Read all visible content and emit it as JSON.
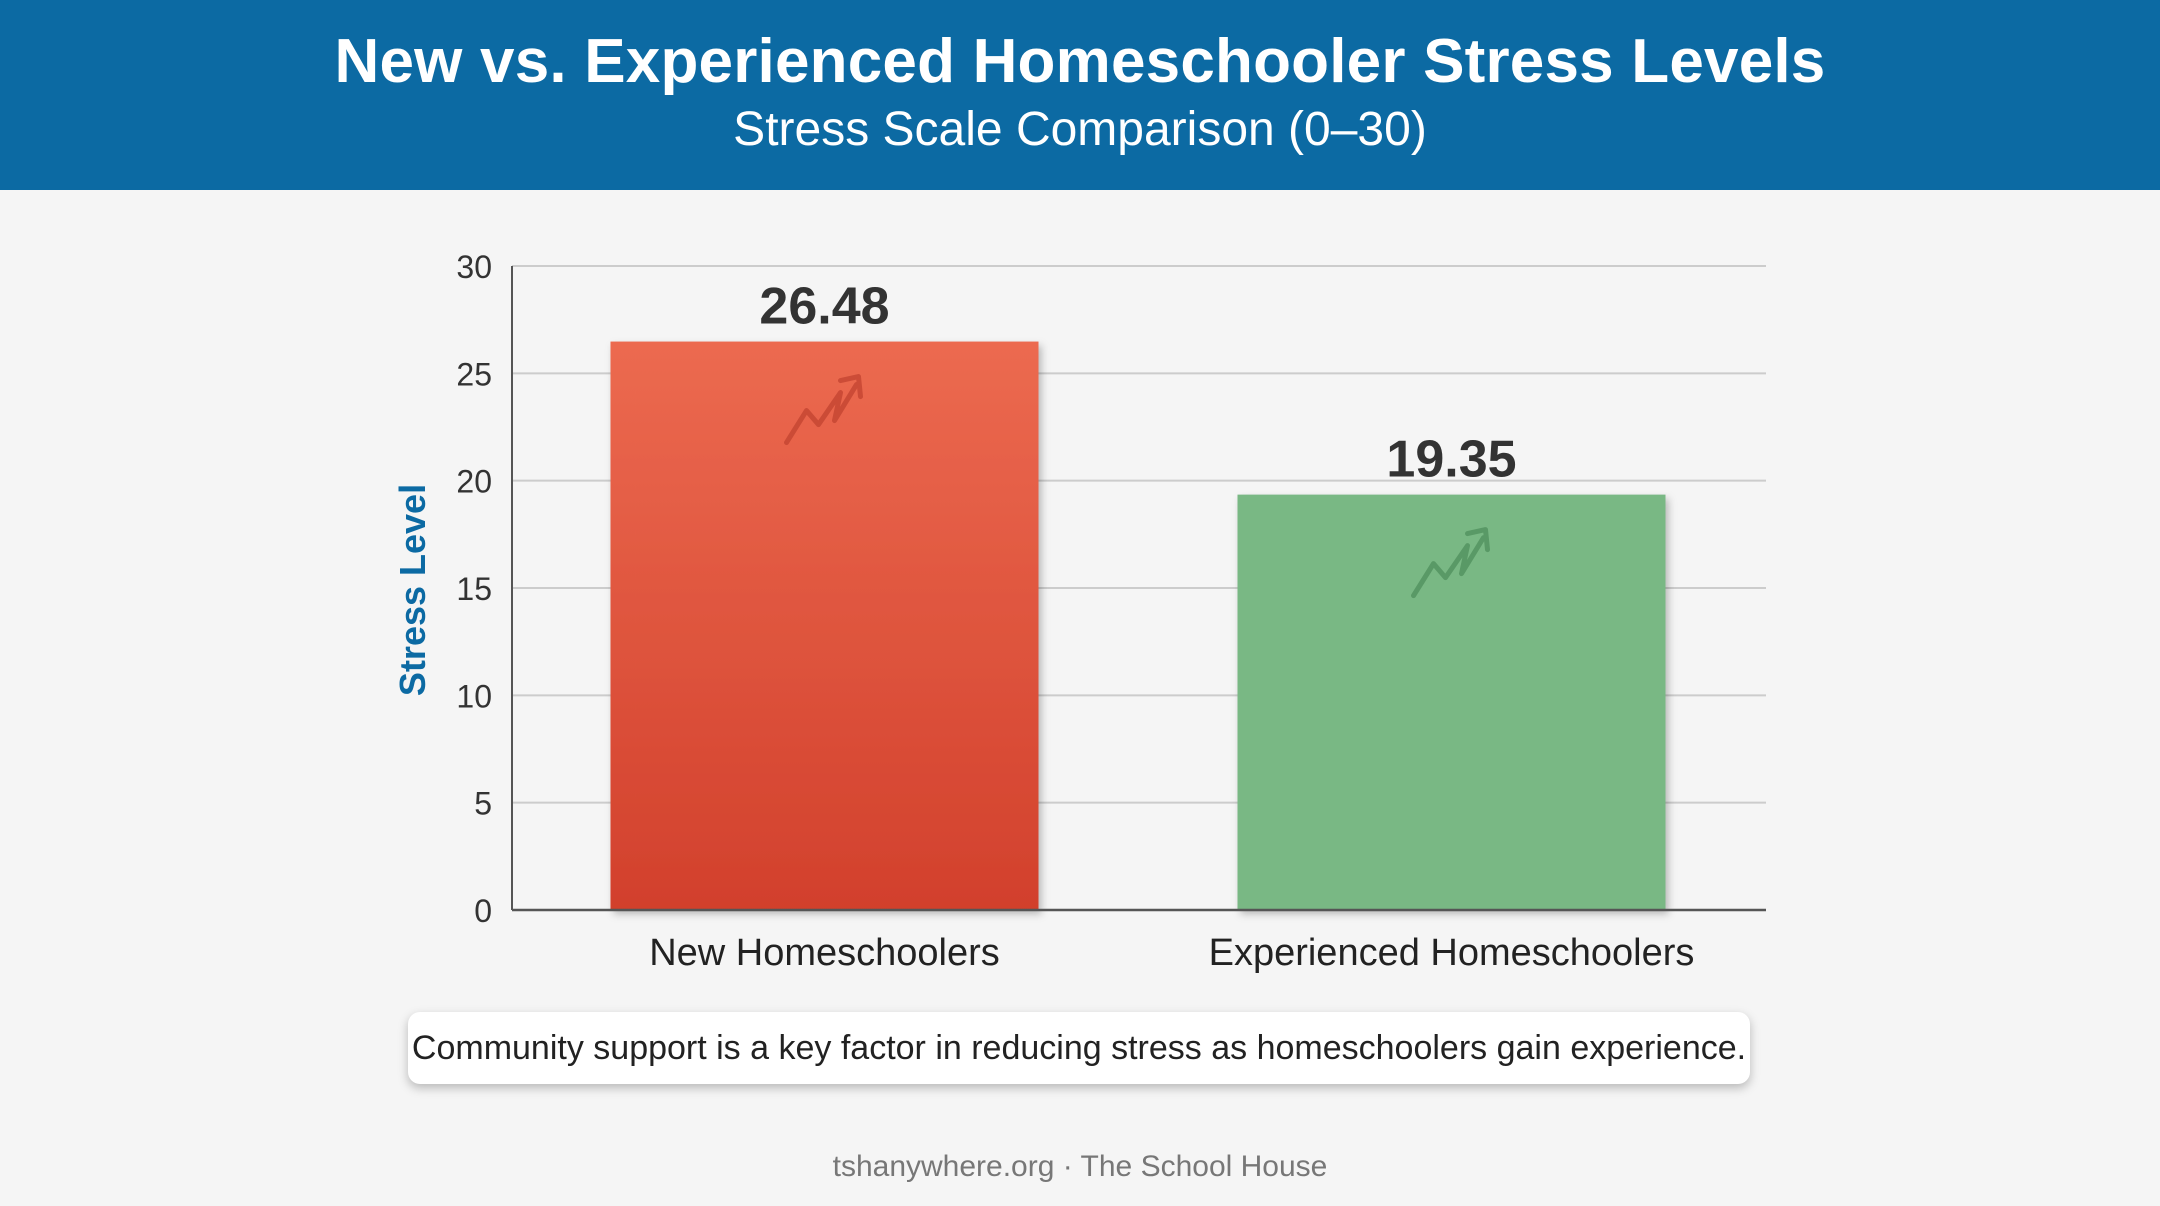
{
  "header": {
    "title": "New vs. Experienced Homeschooler Stress Levels",
    "subtitle": "Stress Scale Comparison (0–30)"
  },
  "chart_data": {
    "type": "bar",
    "title": "New vs. Experienced Homeschooler Stress Levels",
    "subtitle": "Stress Scale Comparison (0–30)",
    "xlabel": "",
    "ylabel": "Stress Level",
    "ylim": [
      0,
      30
    ],
    "yticks": [
      0,
      5,
      10,
      15,
      20,
      25,
      30
    ],
    "grid": true,
    "legend": "none",
    "categories": [
      "New Homeschoolers",
      "Experienced Homeschoolers"
    ],
    "values": [
      26.48,
      19.35
    ],
    "value_labels": [
      "26.48",
      "19.35"
    ],
    "bar_icon": "trending-up-icon",
    "colors": {
      "bar_new_top": "#ec6a50",
      "bar_new_bottom": "#d2402c",
      "bar_experienced": "#79b884",
      "axis_label": "#0c6aa3",
      "gridline": "#cccccc"
    }
  },
  "note": "Community support is a key factor in reducing stress as homeschoolers gain experience.",
  "footer": "tshanywhere.org · The School House",
  "colors": {
    "header_bg": "#0c6aa3",
    "page_bg": "#f5f5f5"
  }
}
